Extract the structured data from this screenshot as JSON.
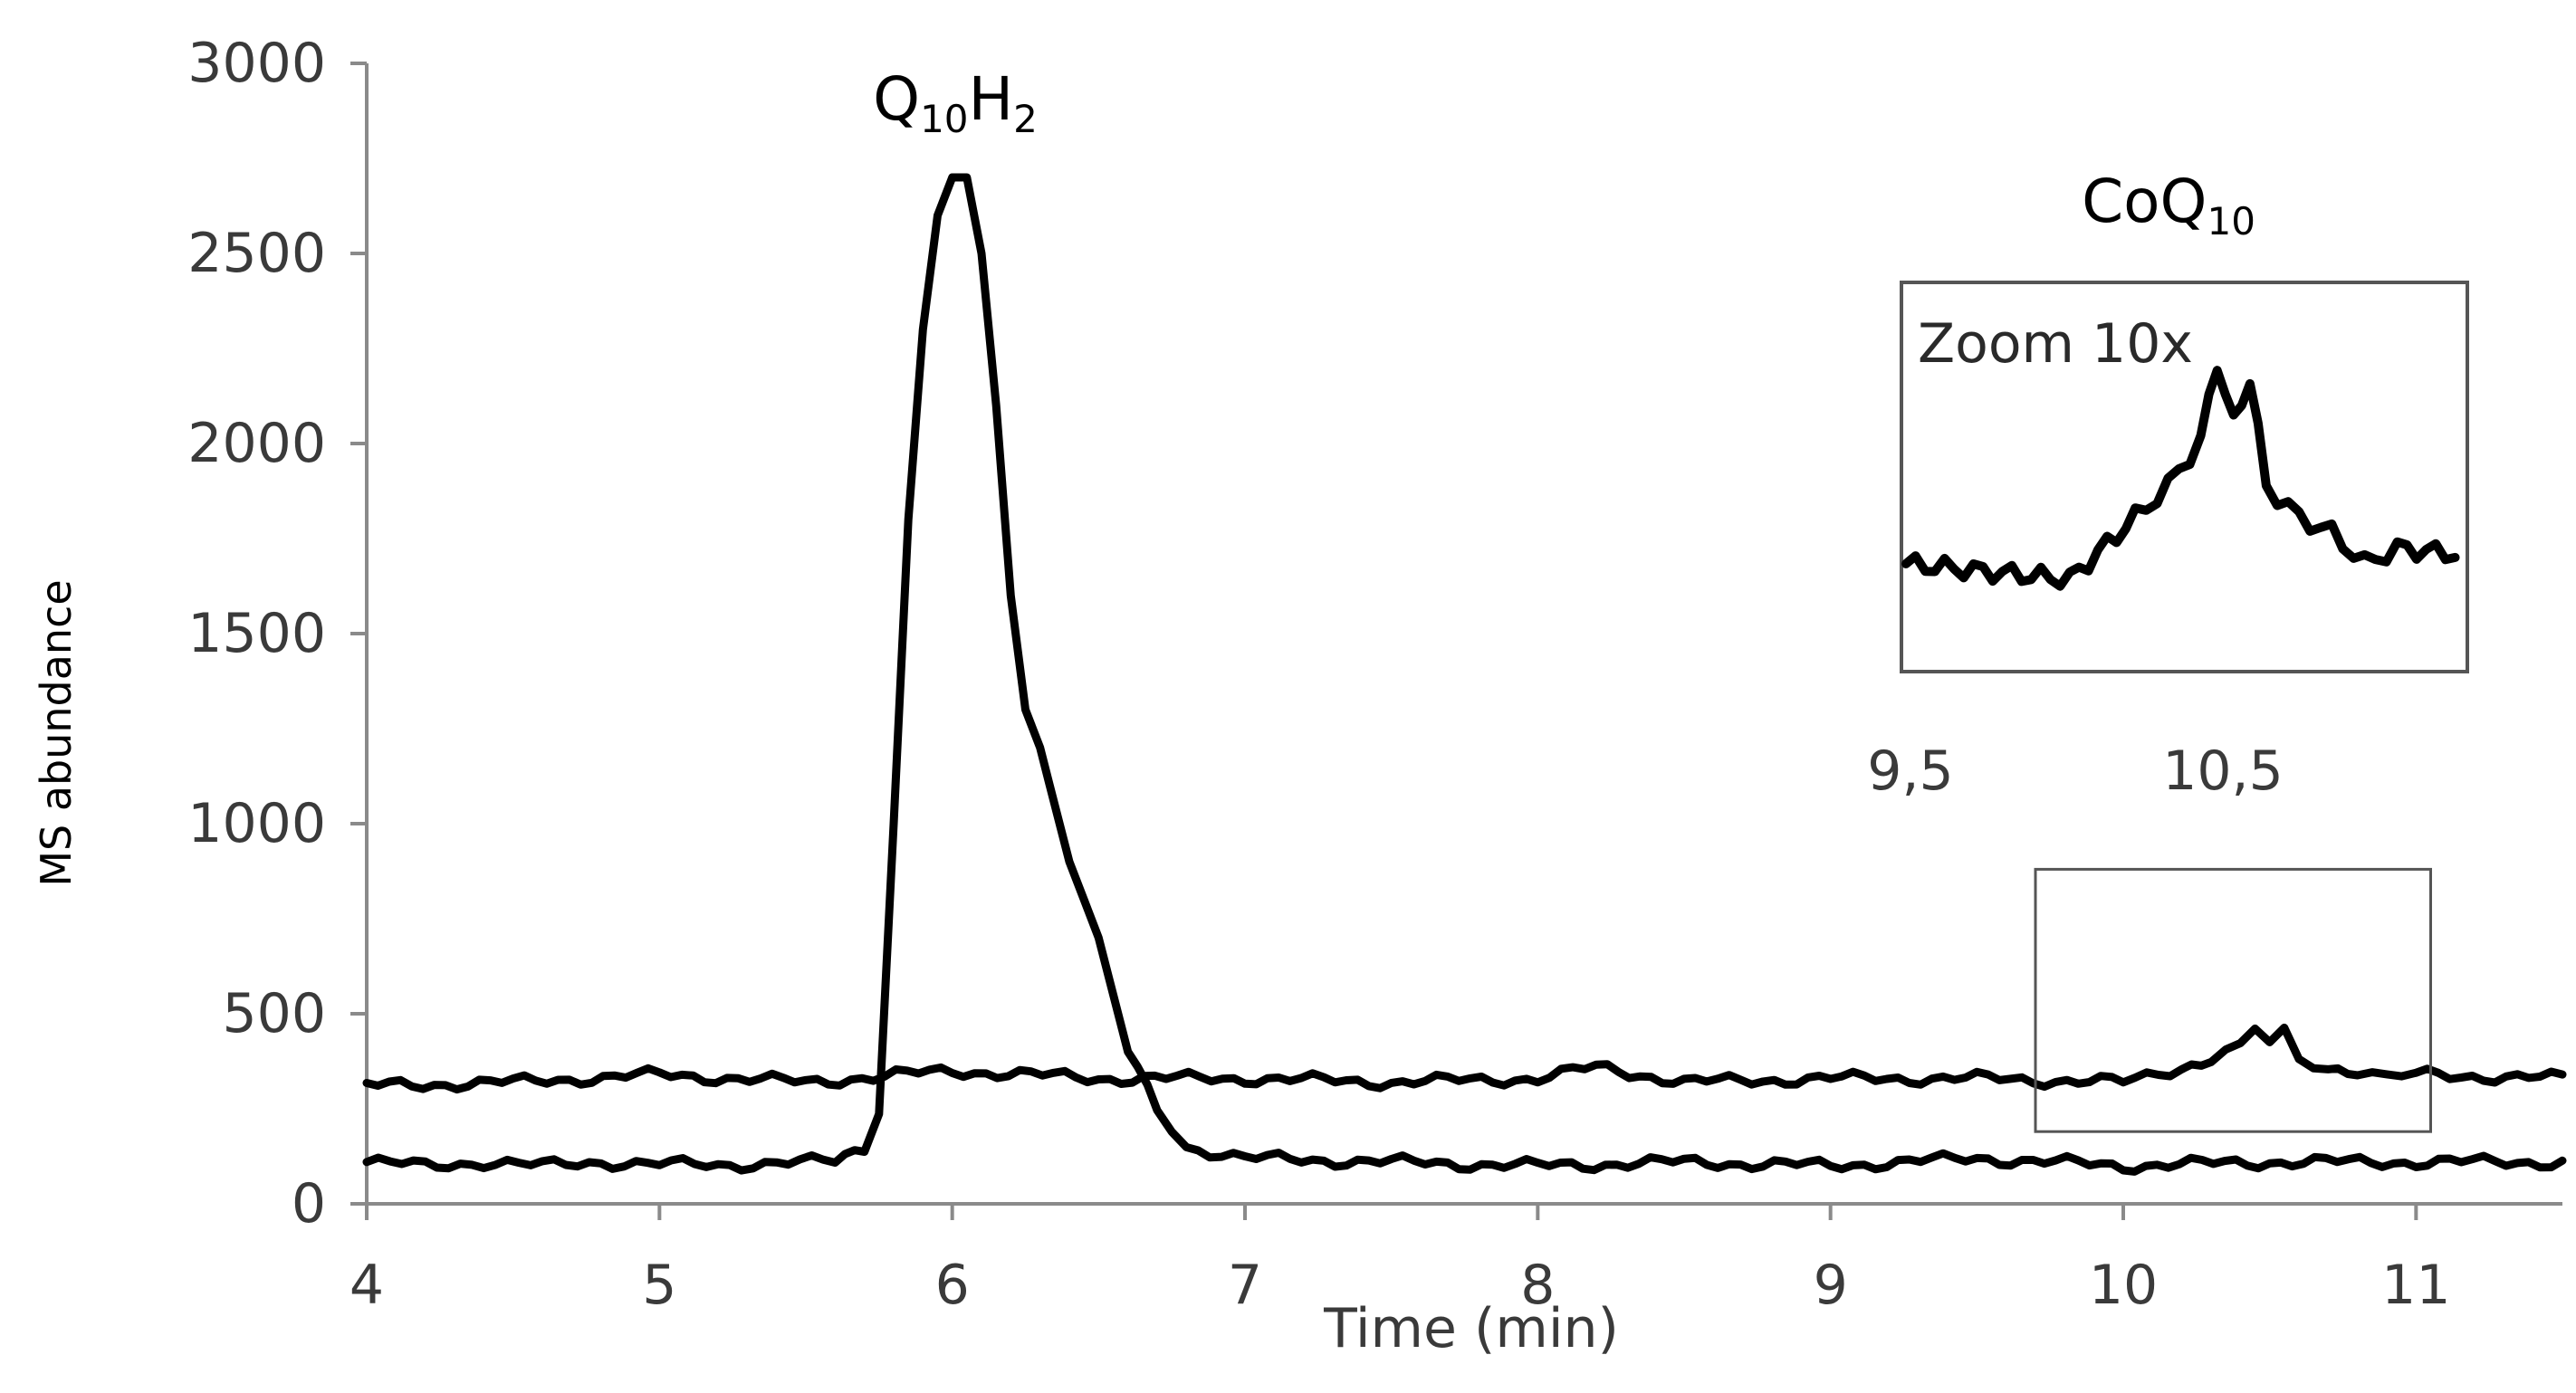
{
  "chart_data": {
    "type": "line",
    "xlabel": "Time (min)",
    "ylabel": "MS abundance",
    "xlim": [
      4,
      11.5
    ],
    "ylim": [
      0,
      3000
    ],
    "x_ticks": [
      "4",
      "5",
      "6",
      "7",
      "8",
      "9",
      "10",
      "11"
    ],
    "y_ticks": [
      "0",
      "500",
      "1000",
      "1500",
      "2000",
      "2500",
      "3000"
    ],
    "grid": false,
    "annotations": {
      "peak1": {
        "base": "Q",
        "sub1": "10",
        "mid": "H",
        "sub2": "2"
      },
      "peak2": {
        "base": "CoQ",
        "sub1": "10"
      },
      "inset_label": "Zoom 10x"
    },
    "inset": {
      "x_ticks": [
        "9,5",
        "10,5"
      ],
      "xlim": [
        9.5,
        11.2
      ],
      "zoom_box": {
        "x": [
          9.7,
          11.05
        ],
        "y": [
          190,
          880
        ]
      }
    },
    "series": [
      {
        "x": [
          4.0,
          4.2,
          4.4,
          4.6,
          4.8,
          5.0,
          5.2,
          5.4,
          5.6,
          5.7,
          5.75,
          5.8,
          5.85,
          5.9,
          5.95,
          6.0,
          6.05,
          6.1,
          6.15,
          6.2,
          6.25,
          6.3,
          6.4,
          6.5,
          6.6,
          6.7,
          6.8,
          7.0,
          7.5,
          8.0,
          8.5,
          9.0,
          9.5,
          10.0,
          10.5,
          11.0,
          11.5
        ],
        "values": [
          110,
          100,
          110,
          100,
          110,
          105,
          100,
          110,
          110,
          150,
          250,
          1000,
          1800,
          2300,
          2600,
          2700,
          2700,
          2500,
          2100,
          1600,
          1300,
          1200,
          900,
          700,
          400,
          250,
          150,
          120,
          110,
          100,
          110,
          100,
          120,
          100,
          110,
          110,
          110
        ]
      },
      {
        "x": [
          4.0,
          4.5,
          5.0,
          5.5,
          6.0,
          6.5,
          7.0,
          7.5,
          8.0,
          8.2,
          8.5,
          9.0,
          9.5,
          10.0,
          10.2,
          10.3,
          10.4,
          10.45,
          10.5,
          10.55,
          10.6,
          10.7,
          10.8,
          10.9,
          11.0,
          11.5
        ],
        "values": [
          310,
          320,
          340,
          320,
          350,
          330,
          330,
          320,
          330,
          360,
          320,
          330,
          330,
          320,
          360,
          380,
          410,
          460,
          420,
          450,
          380,
          360,
          350,
          330,
          340,
          330
        ]
      }
    ]
  }
}
